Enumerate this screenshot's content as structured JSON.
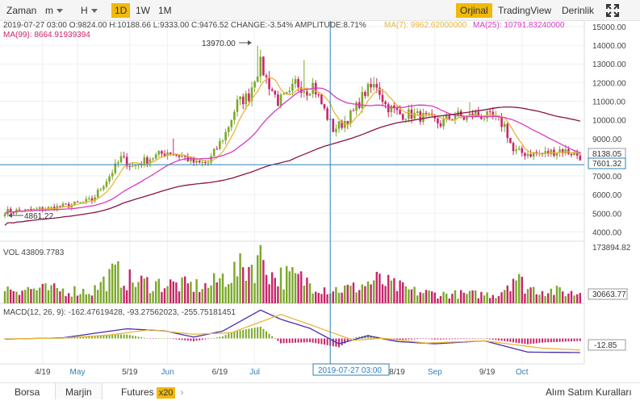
{
  "toolbar": {
    "time_label": "Zaman",
    "minute_label": "m",
    "hour_label": "H",
    "intervals": [
      "1D",
      "1W",
      "1M"
    ],
    "active_interval": "1D",
    "view_modes": [
      "Orjinal",
      "TradingView",
      "Derinlik"
    ],
    "active_view": "Orjinal",
    "expand_icon": "expand-arrows-icon"
  },
  "info": {
    "candle_line": "2019-07-27 03:00   O:9824.00  H:10188.66  L:9333.00  C:9476.52  CHANGE:-3.54%  AMPLITUDE:8.71%",
    "ma7": "MA(7): 9962.62000000",
    "ma25": "MA(25): 10791.83240000",
    "ma99": "MA(99): 8664.91939394"
  },
  "markers": {
    "high": "13970.00",
    "low": "4861.22"
  },
  "price_badges": {
    "current": "8138.05",
    "crosshair": "7601.32"
  },
  "volume": {
    "label": "VOL 43809.7783",
    "axis_max": "173894.82",
    "current": "30663.77"
  },
  "macd": {
    "label": "MACD(12, 26, 9): -162.47619428, -93.27562023, -255.75181451",
    "current": "-12.85"
  },
  "crosshair_time": "2019-07-27 03:00",
  "bottom_tabs": {
    "borsa": "Borsa",
    "marjin": "Marjin",
    "futures": "Futures",
    "futures_badge": "x20",
    "right": "Alım Satım Kuralları"
  },
  "colors": {
    "up": "#7ba82b",
    "down": "#c8256a",
    "ma7": "#e8b63a",
    "ma25": "#d63cc4",
    "ma99": "#8a1444",
    "dif": "#4b2bb0",
    "dea": "#e8b63a",
    "crosshair": "#2f7fb5",
    "accent": "#f0b90b"
  },
  "chart_data": {
    "type": "candlestick",
    "y_ticks": [
      "15000.00",
      "14000.00",
      "13000.00",
      "12000.00",
      "11000.00",
      "10000.00",
      "9000.00",
      "8000.00",
      "7000.00",
      "6000.00",
      "5000.00",
      "4000.00"
    ],
    "x_ticks": [
      "4/19",
      "May",
      "5/19",
      "Jun",
      "6/19",
      "Jul",
      "8/19",
      "Sep",
      "9/19",
      "Oct"
    ],
    "ylim": [
      3500,
      15300
    ],
    "volume_ylim": [
      0,
      173894.82
    ],
    "macd_ylim": [
      -1100,
      1450
    ],
    "candle_count": 199,
    "first_day": "2019-04-06",
    "highlight_index": 112,
    "close_anchors": [
      [
        0,
        5100
      ],
      [
        8,
        5150
      ],
      [
        16,
        5280
      ],
      [
        24,
        5480
      ],
      [
        30,
        5700
      ],
      [
        36,
        7000
      ],
      [
        40,
        7950
      ],
      [
        44,
        7500
      ],
      [
        50,
        7950
      ],
      [
        56,
        8300
      ],
      [
        62,
        8000
      ],
      [
        66,
        7650
      ],
      [
        70,
        7700
      ],
      [
        76,
        9300
      ],
      [
        80,
        10900
      ],
      [
        84,
        11300
      ],
      [
        86,
        12300
      ],
      [
        88,
        13000
      ],
      [
        90,
        12200
      ],
      [
        94,
        11000
      ],
      [
        98,
        11300
      ],
      [
        100,
        12000
      ],
      [
        104,
        11600
      ],
      [
        106,
        11900
      ],
      [
        110,
        10500
      ],
      [
        113,
        9500
      ],
      [
        116,
        9800
      ],
      [
        120,
        10400
      ],
      [
        124,
        11500
      ],
      [
        128,
        11900
      ],
      [
        131,
        10800
      ],
      [
        136,
        10300
      ],
      [
        140,
        10300
      ],
      [
        145,
        10100
      ],
      [
        150,
        9800
      ],
      [
        155,
        10300
      ],
      [
        158,
        10100
      ],
      [
        162,
        10300
      ],
      [
        168,
        10100
      ],
      [
        172,
        9700
      ],
      [
        175,
        8300
      ],
      [
        180,
        8200
      ],
      [
        186,
        8200
      ],
      [
        191,
        8400
      ],
      [
        196,
        8200
      ],
      [
        198,
        8040
      ]
    ],
    "spike_highs": [
      [
        41,
        8300
      ],
      [
        58,
        9000
      ],
      [
        87,
        13970
      ],
      [
        89,
        13200
      ],
      [
        103,
        13200
      ],
      [
        127,
        12300
      ],
      [
        160,
        10950
      ]
    ],
    "dif": [
      [
        0,
        -30
      ],
      [
        20,
        30
      ],
      [
        34,
        280
      ],
      [
        42,
        420
      ],
      [
        55,
        330
      ],
      [
        65,
        60
      ],
      [
        75,
        320
      ],
      [
        88,
        1230
      ],
      [
        95,
        830
      ],
      [
        105,
        440
      ],
      [
        115,
        -230
      ],
      [
        125,
        120
      ],
      [
        135,
        -130
      ],
      [
        148,
        -230
      ],
      [
        165,
        -100
      ],
      [
        180,
        -590
      ],
      [
        198,
        -610
      ]
    ],
    "dea": [
      [
        0,
        -20
      ],
      [
        20,
        20
      ],
      [
        36,
        150
      ],
      [
        50,
        380
      ],
      [
        65,
        180
      ],
      [
        78,
        250
      ],
      [
        95,
        1040
      ],
      [
        105,
        600
      ],
      [
        120,
        -80
      ],
      [
        130,
        10
      ],
      [
        145,
        -200
      ],
      [
        165,
        -100
      ],
      [
        185,
        -420
      ],
      [
        198,
        -500
      ]
    ],
    "volume_anchors": [
      [
        0,
        50000
      ],
      [
        30,
        40000
      ],
      [
        38,
        100000
      ],
      [
        44,
        70000
      ],
      [
        60,
        60000
      ],
      [
        70,
        55000
      ],
      [
        76,
        90000
      ],
      [
        86,
        130000
      ],
      [
        88,
        173000
      ],
      [
        92,
        90000
      ],
      [
        100,
        85000
      ],
      [
        112,
        45000
      ],
      [
        120,
        50000
      ],
      [
        128,
        75000
      ],
      [
        140,
        40000
      ],
      [
        150,
        30000
      ],
      [
        170,
        30000
      ],
      [
        175,
        90000
      ],
      [
        180,
        50000
      ],
      [
        198,
        30663
      ]
    ]
  }
}
